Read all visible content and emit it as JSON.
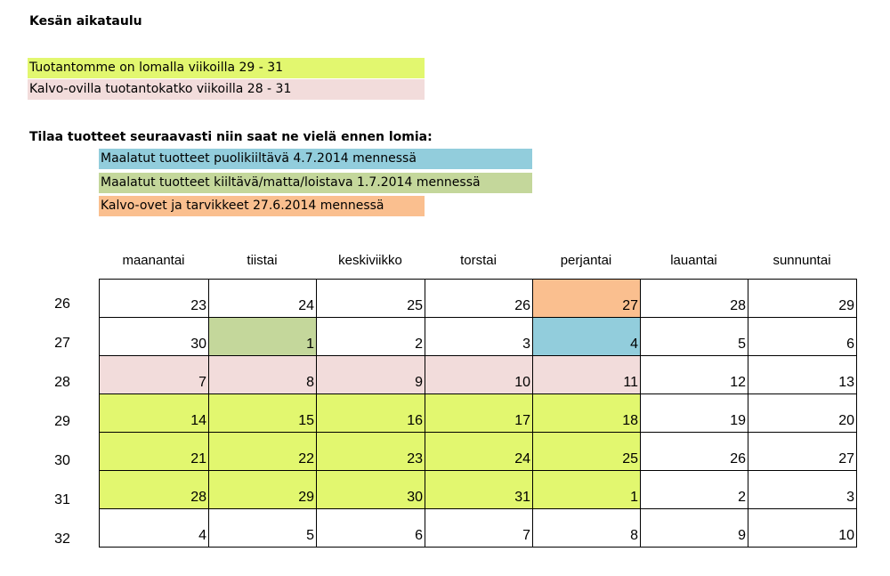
{
  "title": "Kesän aikataulu",
  "notices": [
    {
      "text": "Tuotantomme on lomalla viikoilla 29 - 31",
      "color": "#e2f76f"
    },
    {
      "text": "Kalvo-ovilla tuotantokatko viikoilla 28 - 31",
      "color": "#f2dcdb"
    }
  ],
  "order_heading": "Tilaa tuotteet seuraavasti niin saat ne vielä ennen lomia:",
  "deadlines": [
    {
      "text": "Maalatut tuotteet puolikiiltävä 4.7.2014 mennessä",
      "color": "#92cddc"
    },
    {
      "text": "Maalatut tuotteet kiiltävä/matta/loistava 1.7.2014 mennessä",
      "color": "#c4d79b"
    },
    {
      "text": "Kalvo-ovet ja tarvikkeet 27.6.2014 mennessä",
      "color": "#fabf8f"
    }
  ],
  "calendar": {
    "days": [
      "maanantai",
      "tiistai",
      "keskiviikko",
      "torstai",
      "perjantai",
      "lauantai",
      "sunnuntai"
    ],
    "weeks": [
      {
        "week": "26",
        "dates": [
          "23",
          "24",
          "25",
          "26",
          "27",
          "28",
          "29"
        ],
        "colors": [
          "white",
          "white",
          "white",
          "white",
          "orange",
          "white",
          "white"
        ]
      },
      {
        "week": "27",
        "dates": [
          "30",
          "1",
          "2",
          "3",
          "4",
          "5",
          "6"
        ],
        "colors": [
          "white",
          "green",
          "white",
          "white",
          "blue",
          "white",
          "white"
        ]
      },
      {
        "week": "28",
        "dates": [
          "7",
          "8",
          "9",
          "10",
          "11",
          "12",
          "13"
        ],
        "colors": [
          "pink",
          "pink",
          "pink",
          "pink",
          "pink",
          "white",
          "white"
        ]
      },
      {
        "week": "29",
        "dates": [
          "14",
          "15",
          "16",
          "17",
          "18",
          "19",
          "20"
        ],
        "colors": [
          "lime",
          "lime",
          "lime",
          "lime",
          "lime",
          "white",
          "white"
        ]
      },
      {
        "week": "30",
        "dates": [
          "21",
          "22",
          "23",
          "24",
          "25",
          "26",
          "27"
        ],
        "colors": [
          "lime",
          "lime",
          "lime",
          "lime",
          "lime",
          "white",
          "white"
        ]
      },
      {
        "week": "31",
        "dates": [
          "28",
          "29",
          "30",
          "31",
          "1",
          "2",
          "3"
        ],
        "colors": [
          "lime",
          "lime",
          "lime",
          "lime",
          "lime",
          "white",
          "white"
        ]
      },
      {
        "week": "32",
        "dates": [
          "4",
          "5",
          "6",
          "7",
          "8",
          "9",
          "10"
        ],
        "colors": [
          "white",
          "white",
          "white",
          "white",
          "white",
          "white",
          "white"
        ]
      }
    ]
  }
}
